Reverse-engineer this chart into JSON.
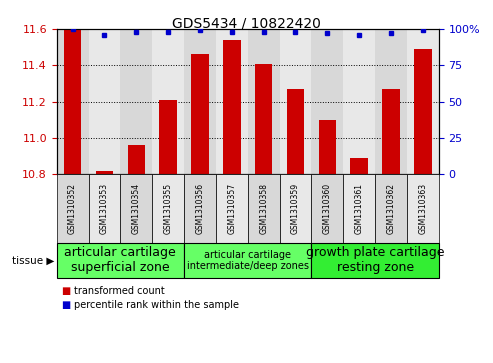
{
  "title": "GDS5434 / 10822420",
  "samples": [
    "GSM1310352",
    "GSM1310353",
    "GSM1310354",
    "GSM1310355",
    "GSM1310356",
    "GSM1310357",
    "GSM1310358",
    "GSM1310359",
    "GSM1310360",
    "GSM1310361",
    "GSM1310362",
    "GSM1310363"
  ],
  "bar_values": [
    11.6,
    10.82,
    10.96,
    11.21,
    11.46,
    11.54,
    11.41,
    11.27,
    11.1,
    10.89,
    11.27,
    11.49
  ],
  "percentile_values": [
    100,
    96,
    98,
    98,
    99,
    98,
    98,
    98,
    97,
    96,
    97,
    99
  ],
  "ylim_left": [
    10.8,
    11.6
  ],
  "ylim_right": [
    0,
    100
  ],
  "bar_color": "#cc0000",
  "dot_color": "#0000cc",
  "tissue_groups": [
    {
      "label": "articular cartilage\nsuperficial zone",
      "start": 0,
      "end": 4,
      "color": "#66ff66",
      "fontsize": 9
    },
    {
      "label": "articular cartilage\nintermediate/deep zones",
      "start": 4,
      "end": 8,
      "color": "#66ff66",
      "fontsize": 7
    },
    {
      "label": "growth plate cartilage\nresting zone",
      "start": 8,
      "end": 12,
      "color": "#33ee33",
      "fontsize": 9
    }
  ],
  "tissue_label": "tissue",
  "legend_bar_label": "transformed count",
  "legend_dot_label": "percentile rank within the sample",
  "ylabel_left_color": "#cc0000",
  "ylabel_right_color": "#0000cc",
  "yticks_left": [
    10.8,
    11.0,
    11.2,
    11.4,
    11.6
  ],
  "yticks_right": [
    0,
    25,
    50,
    75,
    100
  ],
  "col_bg_even": "#d8d8d8",
  "col_bg_odd": "#e8e8e8",
  "plot_bg": "#ffffff"
}
